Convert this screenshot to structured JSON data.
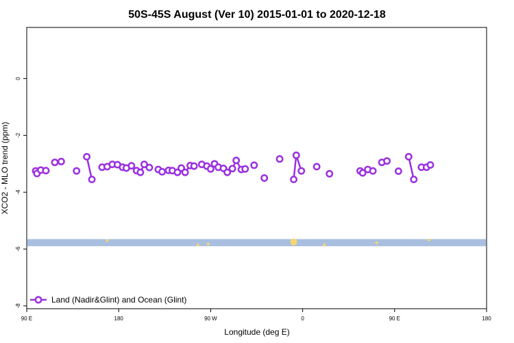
{
  "chart_data": {
    "type": "line",
    "title": "50S-45S August (Ver 10)   2015-01-01 to 2020-12-18",
    "xlabel": "Longitude (deg E)",
    "ylabel": "XCO2 - MLO trend (ppm)",
    "xlim": [
      -90,
      270
    ],
    "ylim": [
      -8.1,
      1.8
    ],
    "x_ticks": [
      -90,
      -18,
      54,
      126,
      198,
      270
    ],
    "x_tick_labels": [
      "90 E",
      "180",
      "90 W",
      "0",
      "90 E",
      "180"
    ],
    "y_ticks": [
      -8,
      -6,
      -4,
      -2,
      0
    ],
    "y_tick_labels": [
      "-8",
      "-6",
      "-4",
      "-2",
      "0"
    ],
    "legend_position": "bottom-left",
    "series": [
      {
        "name": "Land (Nadir&Glint) and Ocean (Glint)",
        "color": "#9b30e0",
        "segments": [
          [
            [
              -83,
              -3.25
            ],
            [
              -82,
              -3.34
            ],
            [
              -79,
              -3.22
            ],
            [
              -75,
              -3.24
            ]
          ],
          [
            [
              -68,
              -2.95
            ],
            [
              -63,
              -2.92
            ]
          ],
          [
            [
              -51,
              -3.25
            ]
          ],
          [
            [
              -43,
              -2.75
            ],
            [
              -39,
              -3.55
            ]
          ],
          [
            [
              -31,
              -3.12
            ],
            [
              -27,
              -3.1
            ],
            [
              -23,
              -3.02
            ],
            [
              -19,
              -3.03
            ],
            [
              -15,
              -3.12
            ],
            [
              -12,
              -3.15
            ],
            [
              -8,
              -3.07
            ],
            [
              -4,
              -3.24
            ],
            [
              -1,
              -3.3
            ],
            [
              2,
              -3.02
            ],
            [
              6,
              -3.13
            ]
          ],
          [
            [
              13,
              -3.2
            ],
            [
              16,
              -3.28
            ],
            [
              21,
              -3.23
            ],
            [
              24,
              -3.24
            ],
            [
              28,
              -3.3
            ],
            [
              31,
              -3.15
            ],
            [
              34,
              -3.3
            ],
            [
              38,
              -3.06
            ],
            [
              41,
              -3.08
            ]
          ],
          [
            [
              47,
              -3.02
            ],
            [
              51,
              -3.08
            ],
            [
              54,
              -3.18
            ],
            [
              57,
              -3.0
            ],
            [
              60,
              -3.12
            ],
            [
              64,
              -3.16
            ],
            [
              67,
              -3.3
            ],
            [
              71,
              -3.17
            ],
            [
              74,
              -2.88
            ],
            [
              78,
              -3.2
            ],
            [
              81,
              -3.18
            ]
          ],
          [
            [
              88,
              -3.05
            ]
          ],
          [
            [
              96,
              -3.5
            ]
          ],
          [
            [
              108,
              -2.83
            ]
          ],
          [
            [
              119,
              -3.55
            ],
            [
              121,
              -2.7
            ],
            [
              125,
              -3.25
            ]
          ],
          [
            [
              137,
              -3.1
            ]
          ],
          [
            [
              147,
              -3.35
            ]
          ],
          [
            [
              171,
              -3.25
            ],
            [
              173,
              -3.32
            ],
            [
              177,
              -3.2
            ],
            [
              181,
              -3.25
            ]
          ],
          [
            [
              188,
              -2.95
            ],
            [
              192,
              -2.9
            ]
          ],
          [
            [
              201,
              -3.26
            ]
          ],
          [
            [
              209,
              -2.75
            ],
            [
              213,
              -3.55
            ]
          ],
          [
            [
              219,
              -3.12
            ],
            [
              223,
              -3.12
            ],
            [
              226,
              -3.04
            ]
          ]
        ]
      }
    ],
    "ocean_band": {
      "y_range": [
        -5.9,
        -5.65
      ],
      "color": "#a8bfe0"
    },
    "glint_markers": {
      "color": "#f5d76e",
      "points": [
        [
          -27,
          -5.7
        ],
        [
          44,
          -5.85
        ],
        [
          52,
          -5.82
        ],
        [
          119,
          -5.75
        ],
        [
          143,
          -5.85
        ],
        [
          184,
          -5.78
        ],
        [
          225,
          -5.68
        ]
      ]
    }
  }
}
